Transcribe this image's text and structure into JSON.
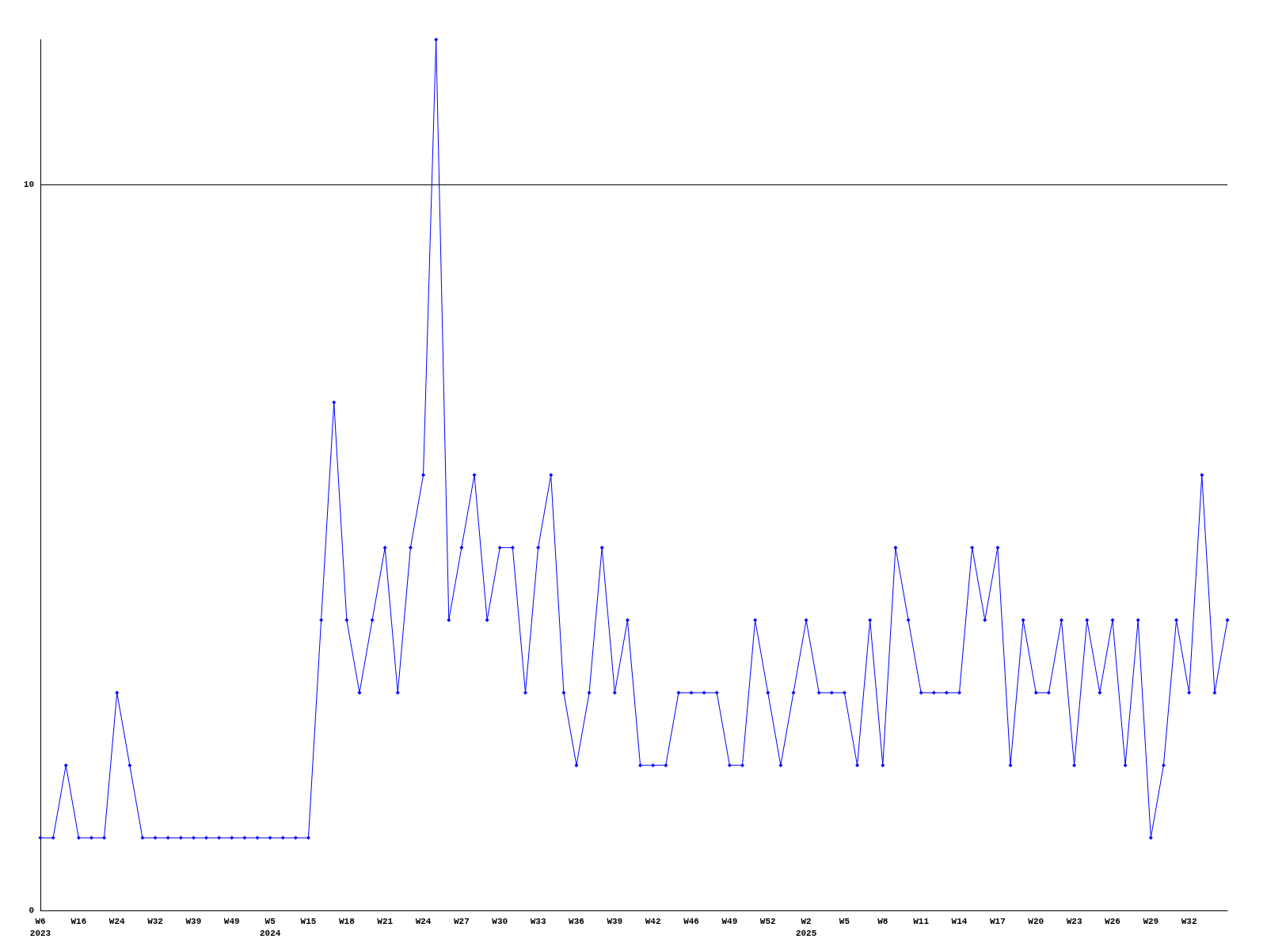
{
  "chart_data": {
    "type": "line",
    "categories": [
      "W6\n2023",
      null,
      null,
      "W16",
      null,
      null,
      "W24",
      null,
      null,
      "W32",
      null,
      null,
      "W39",
      null,
      null,
      "W49",
      null,
      null,
      "W5\n2024",
      null,
      null,
      "W15",
      null,
      null,
      "W18",
      null,
      null,
      "W21",
      null,
      null,
      "W24",
      null,
      null,
      "W27",
      null,
      null,
      "W30",
      null,
      null,
      "W33",
      null,
      null,
      "W36",
      null,
      null,
      "W39",
      null,
      null,
      "W42",
      null,
      null,
      "W46",
      null,
      null,
      "W49",
      null,
      null,
      "W52",
      null,
      null,
      "W2\n2025",
      null,
      null,
      "W5",
      null,
      null,
      "W8",
      null,
      null,
      "W11",
      null,
      null,
      "W14",
      null,
      null,
      "W17",
      null,
      null,
      "W20",
      null,
      null,
      "W23",
      null,
      null,
      "W26",
      null,
      null,
      "W29",
      null,
      null,
      "W32",
      null,
      null,
      null
    ],
    "series": [
      {
        "color": "#0000ff",
        "values": [
          1,
          1,
          2,
          1,
          1,
          1,
          3,
          2,
          1,
          1,
          1,
          1,
          1,
          1,
          1,
          1,
          1,
          1,
          1,
          1,
          1,
          1,
          4,
          7,
          4,
          3,
          4,
          5,
          3,
          5,
          6,
          12,
          4,
          5,
          6,
          4,
          5,
          5,
          3,
          5,
          6,
          3,
          2,
          3,
          5,
          3,
          4,
          2,
          2,
          2,
          3,
          3,
          3,
          3,
          2,
          2,
          4,
          3,
          2,
          3,
          4,
          3,
          3,
          3,
          2,
          4,
          2,
          5,
          4,
          3,
          3,
          3,
          3,
          5,
          4,
          5,
          2,
          4,
          3,
          3,
          4,
          2,
          4,
          3,
          4,
          2,
          4,
          1,
          2,
          4,
          3,
          6,
          3,
          4
        ]
      }
    ],
    "ylim": [
      0,
      12
    ],
    "yticks": [
      0,
      10
    ],
    "grid": "y",
    "marker": "diamond",
    "line_style": "solid"
  }
}
